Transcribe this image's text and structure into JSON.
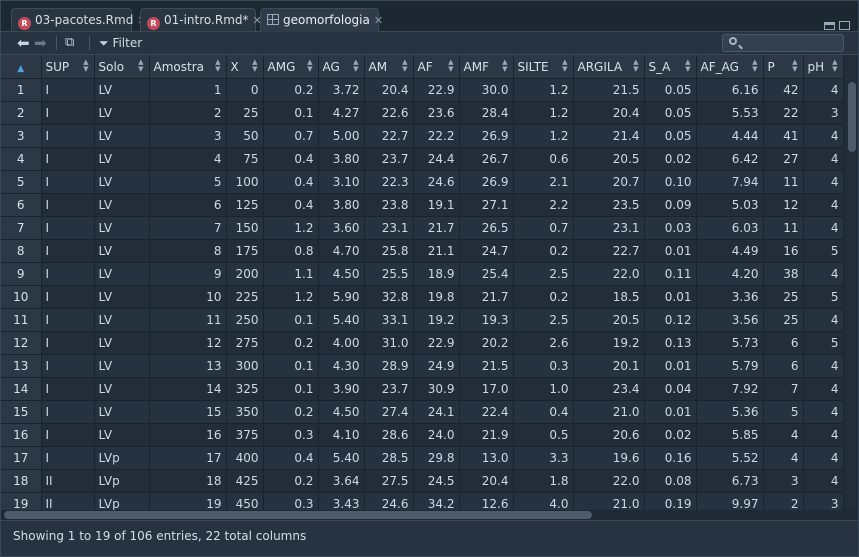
{
  "tabs": [
    {
      "label": "03-pacotes.Rmd",
      "icon": "rmd-file-icon"
    },
    {
      "label": "01-intro.Rmd*",
      "icon": "rmd-file-icon"
    },
    {
      "label": "geomorfologia",
      "icon": "data-grid-icon"
    }
  ],
  "toolbar": {
    "filter_label": "Filter",
    "search_placeholder": ""
  },
  "table": {
    "columns": [
      "SUP",
      "Solo",
      "Amostra",
      "X",
      "AMG",
      "AG",
      "AM",
      "AF",
      "AMF",
      "SILTE",
      "ARGILA",
      "S_A",
      "AF_AG",
      "P",
      "pH"
    ],
    "rows": [
      [
        "1",
        "I",
        "LV",
        "1",
        "0",
        "0.2",
        "3.72",
        "20.4",
        "22.9",
        "30.0",
        "1.2",
        "21.5",
        "0.05",
        "6.16",
        "42",
        "4"
      ],
      [
        "2",
        "I",
        "LV",
        "2",
        "25",
        "0.1",
        "4.27",
        "22.6",
        "23.6",
        "28.4",
        "1.2",
        "20.4",
        "0.05",
        "5.53",
        "22",
        "3"
      ],
      [
        "3",
        "I",
        "LV",
        "3",
        "50",
        "0.7",
        "5.00",
        "22.7",
        "22.2",
        "26.9",
        "1.2",
        "21.4",
        "0.05",
        "4.44",
        "41",
        "4"
      ],
      [
        "4",
        "I",
        "LV",
        "4",
        "75",
        "0.4",
        "3.80",
        "23.7",
        "24.4",
        "26.7",
        "0.6",
        "20.5",
        "0.02",
        "6.42",
        "27",
        "4"
      ],
      [
        "5",
        "I",
        "LV",
        "5",
        "100",
        "0.4",
        "3.10",
        "22.3",
        "24.6",
        "26.9",
        "2.1",
        "20.7",
        "0.10",
        "7.94",
        "11",
        "4"
      ],
      [
        "6",
        "I",
        "LV",
        "6",
        "125",
        "0.4",
        "3.80",
        "23.8",
        "19.1",
        "27.1",
        "2.2",
        "23.5",
        "0.09",
        "5.03",
        "12",
        "4"
      ],
      [
        "7",
        "I",
        "LV",
        "7",
        "150",
        "1.2",
        "3.60",
        "23.1",
        "21.7",
        "26.5",
        "0.7",
        "23.1",
        "0.03",
        "6.03",
        "11",
        "4"
      ],
      [
        "8",
        "I",
        "LV",
        "8",
        "175",
        "0.8",
        "4.70",
        "25.8",
        "21.1",
        "24.7",
        "0.2",
        "22.7",
        "0.01",
        "4.49",
        "16",
        "5"
      ],
      [
        "9",
        "I",
        "LV",
        "9",
        "200",
        "1.1",
        "4.50",
        "25.5",
        "18.9",
        "25.4",
        "2.5",
        "22.0",
        "0.11",
        "4.20",
        "38",
        "4"
      ],
      [
        "10",
        "I",
        "LV",
        "10",
        "225",
        "1.2",
        "5.90",
        "32.8",
        "19.8",
        "21.7",
        "0.2",
        "18.5",
        "0.01",
        "3.36",
        "25",
        "5"
      ],
      [
        "11",
        "I",
        "LV",
        "11",
        "250",
        "0.1",
        "5.40",
        "33.1",
        "19.2",
        "19.3",
        "2.5",
        "20.5",
        "0.12",
        "3.56",
        "25",
        "4"
      ],
      [
        "12",
        "I",
        "LV",
        "12",
        "275",
        "0.2",
        "4.00",
        "31.0",
        "22.9",
        "20.2",
        "2.6",
        "19.2",
        "0.13",
        "5.73",
        "6",
        "5"
      ],
      [
        "13",
        "I",
        "LV",
        "13",
        "300",
        "0.1",
        "4.30",
        "28.9",
        "24.9",
        "21.5",
        "0.3",
        "20.1",
        "0.01",
        "5.79",
        "6",
        "4"
      ],
      [
        "14",
        "I",
        "LV",
        "14",
        "325",
        "0.1",
        "3.90",
        "23.7",
        "30.9",
        "17.0",
        "1.0",
        "23.4",
        "0.04",
        "7.92",
        "7",
        "4"
      ],
      [
        "15",
        "I",
        "LV",
        "15",
        "350",
        "0.2",
        "4.50",
        "27.4",
        "24.1",
        "22.4",
        "0.4",
        "21.0",
        "0.01",
        "5.36",
        "5",
        "4"
      ],
      [
        "16",
        "I",
        "LV",
        "16",
        "375",
        "0.3",
        "4.10",
        "28.6",
        "24.0",
        "21.9",
        "0.5",
        "20.6",
        "0.02",
        "5.85",
        "4",
        "4"
      ],
      [
        "17",
        "I",
        "LVp",
        "17",
        "400",
        "0.4",
        "5.40",
        "28.5",
        "29.8",
        "13.0",
        "3.3",
        "19.6",
        "0.16",
        "5.52",
        "4",
        "4"
      ],
      [
        "18",
        "II",
        "LVp",
        "18",
        "425",
        "0.2",
        "3.64",
        "27.5",
        "24.5",
        "20.4",
        "1.8",
        "22.0",
        "0.08",
        "6.73",
        "3",
        "4"
      ],
      [
        "19",
        "II",
        "LVp",
        "19",
        "450",
        "0.3",
        "3.43",
        "24.6",
        "34.2",
        "12.6",
        "4.0",
        "21.0",
        "0.19",
        "9.97",
        "2",
        "3"
      ]
    ]
  },
  "status": {
    "text": "Showing 1 to 19 of 106 entries, 22 total columns"
  }
}
